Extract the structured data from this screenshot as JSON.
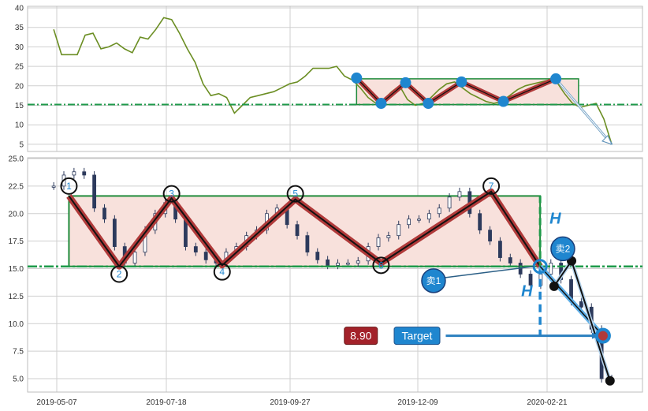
{
  "chart_data": [
    {
      "type": "line",
      "panel": "top",
      "grid": true,
      "ylim": [
        3,
        41
      ],
      "yticks": [
        "5",
        "10",
        "15",
        "20",
        "25",
        "30",
        "35",
        "40"
      ],
      "series": [
        {
          "start": "2019-05-05",
          "end": "2020-03-29",
          "color": "#6b8e23",
          "values": [
            34.5,
            28,
            28,
            28,
            33,
            33.5,
            29.5,
            30,
            31,
            29.5,
            28.5,
            32.5,
            32,
            34.5,
            37.5,
            37,
            33.5,
            29.5,
            26,
            20.5,
            17.5,
            18,
            17,
            13,
            15,
            17,
            17.5,
            18,
            18.5,
            19.5,
            20.5,
            21,
            22.5,
            24.5,
            24.5,
            24.5,
            25,
            22.5,
            21.5,
            19.5,
            17,
            15.5,
            16.5,
            18.5,
            20,
            16.5,
            15,
            15.5,
            17,
            19,
            20.5,
            21,
            19.5,
            18,
            17,
            16,
            15.5,
            16,
            17.5,
            19,
            20,
            20.5,
            21,
            21.5,
            21,
            18,
            15.5,
            14.5,
            15,
            15.5,
            11.5,
            5
          ]
        }
      ],
      "neckline": 15.2,
      "box": {
        "from": "2019-11-04",
        "to": "2020-03-10",
        "low": 15.2,
        "high": 21.8
      },
      "pattern_points": [
        {
          "date": "2019-11-04",
          "value": 22
        },
        {
          "date": "2019-11-18",
          "value": 15.5
        },
        {
          "date": "2019-12-02",
          "value": 20.8
        },
        {
          "date": "2019-12-15",
          "value": 15.5
        },
        {
          "date": "2020-01-03",
          "value": 21
        },
        {
          "date": "2020-01-27",
          "value": 16
        },
        {
          "date": "2020-02-26",
          "value": 21.8
        }
      ],
      "arrow_to": {
        "date": "2020-03-29",
        "value": 5
      }
    },
    {
      "type": "candlestick",
      "panel": "bottom",
      "grid": true,
      "ylim": [
        3.5,
        25
      ],
      "yticks": [
        "5.0",
        "7.5",
        "10.0",
        "12.5",
        "15.0",
        "17.5",
        "20.0",
        "22.5",
        "25.0"
      ],
      "xticks": [
        "2019-05-07",
        "2019-07-18",
        "2019-09-27",
        "2019-12-09",
        "2020-02-21"
      ],
      "closes": {
        "start": "2019-05-05",
        "end": "2020-03-29",
        "color": "#2d3a5c",
        "values": [
          22.5,
          23.5,
          23.8,
          23.5,
          20.5,
          19.5,
          17,
          15.5,
          16.5,
          18.5,
          20,
          21,
          19.5,
          17,
          16.5,
          15.8,
          15.5,
          16.5,
          17,
          18,
          18.5,
          20,
          20.5,
          19,
          18,
          16.5,
          15.8,
          15.3,
          15.5,
          15.5,
          15.7,
          17,
          17.8,
          18,
          19,
          19.5,
          19.5,
          20,
          20.5,
          21.5,
          22,
          20,
          18.5,
          17.5,
          16,
          15.5,
          14.5,
          13.5,
          14.5,
          15.5,
          14,
          12,
          11.5,
          9.5,
          5,
          4.8
        ]
      },
      "neckline": 15.2,
      "box": {
        "from": "2019-05-15",
        "to": "2020-02-17",
        "low": 15.2,
        "high": 21.6
      },
      "zigzag": [
        {
          "date": "2019-05-15",
          "value": 21.6
        },
        {
          "date": "2019-06-17",
          "value": 15.2
        },
        {
          "date": "2019-07-21",
          "value": 21.4
        },
        {
          "date": "2019-08-19",
          "value": 15.3
        },
        {
          "date": "2019-09-30",
          "value": 21.3
        },
        {
          "date": "2019-11-18",
          "value": 15.5
        },
        {
          "date": "2020-01-20",
          "value": 22
        },
        {
          "date": "2020-02-17",
          "value": 15.2
        }
      ],
      "point_labels": [
        {
          "label": "1",
          "date": "2019-05-15",
          "value": 22.5
        },
        {
          "label": "2",
          "date": "2019-06-17",
          "value": 14.5
        },
        {
          "label": "3",
          "date": "2019-07-21",
          "value": 21.8
        },
        {
          "label": "4",
          "date": "2019-08-19",
          "value": 14.7
        },
        {
          "label": "5",
          "date": "2019-09-30",
          "value": 21.8
        },
        {
          "label": "6",
          "date": "2019-11-18",
          "value": 15.3
        },
        {
          "label": "7",
          "date": "2020-01-20",
          "value": 22.5
        }
      ],
      "height_label": "H",
      "breakout": {
        "date": "2020-02-17",
        "value": 15.2
      },
      "target": {
        "date": "2020-03-24",
        "value": 8.9
      },
      "target_label": "Target",
      "target_value_label": "8.90",
      "sell_points": [
        {
          "label": "卖1",
          "date": "2019-12-18",
          "value": 13.9
        },
        {
          "label": "卖2",
          "date": "2020-03-01",
          "value": 16.8
        }
      ],
      "black_points": [
        {
          "date": "2020-02-25",
          "value": 13.4
        },
        {
          "date": "2020-03-06",
          "value": 15.7
        },
        {
          "date": "2020-03-28",
          "value": 4.8
        }
      ],
      "colors": {
        "box_fill": "#f8e1dc",
        "box_stroke": "#1e8a3a",
        "zigzag": "#b03a3a",
        "accent": "#1f86cf",
        "label_box": "#a3222a"
      }
    }
  ]
}
